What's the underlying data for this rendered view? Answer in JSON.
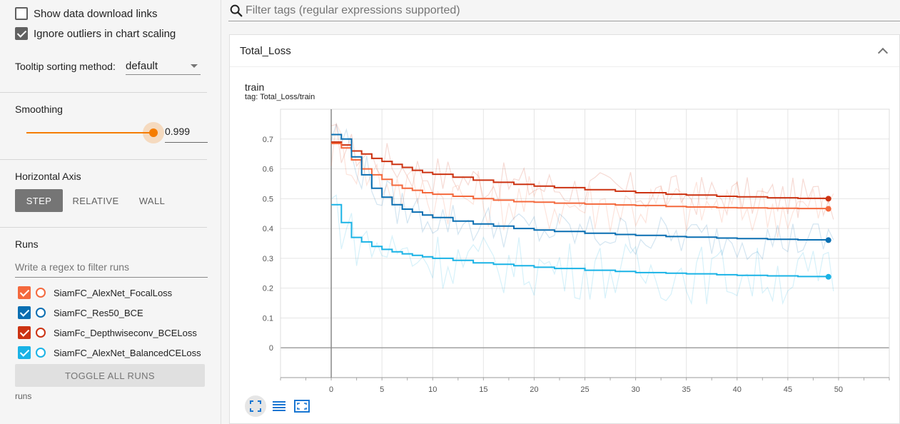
{
  "sidebar": {
    "show_download_links": {
      "label": "Show data download links",
      "checked": false
    },
    "ignore_outliers": {
      "label": "Ignore outliers in chart scaling",
      "checked": true
    },
    "tooltip_sorting": {
      "label": "Tooltip sorting method:",
      "value": "default"
    },
    "smoothing": {
      "label": "Smoothing",
      "value": "0.999",
      "accent": "#f57c00"
    },
    "horizontal_axis": {
      "label": "Horizontal Axis",
      "options": [
        "STEP",
        "RELATIVE",
        "WALL"
      ],
      "selected": "STEP"
    },
    "runs": {
      "label": "Runs",
      "filter_placeholder": "Write a regex to filter runs",
      "items": [
        {
          "name": "SiamFC_AlexNet_FocalLoss",
          "color": "#f4693d",
          "checked": true
        },
        {
          "name": "SiamFC_Res50_BCE",
          "color": "#0a6fb2",
          "checked": true
        },
        {
          "name": "SiamFc_Depthwiseconv_BCELoss",
          "color": "#cc3312",
          "checked": true
        },
        {
          "name": "SiamFC_AlexNet_BalancedCELoss",
          "color": "#1ab3e6",
          "checked": true
        }
      ],
      "toggle_label": "TOGGLE ALL RUNS",
      "footer": "runs"
    }
  },
  "main": {
    "filter_placeholder": "Filter tags (regular expressions supported)",
    "card": {
      "title": "Total_Loss",
      "chart_title": "train",
      "chart_tag": "tag: Total_Loss/train"
    },
    "toolbar": [
      "fit-domain-icon",
      "toggle-log-icon",
      "fit-to-data-icon"
    ]
  },
  "chart_data": {
    "type": "line",
    "xlim": [
      -5,
      55
    ],
    "ylim": [
      -0.1,
      0.8
    ],
    "xticks": [
      0,
      5,
      10,
      15,
      20,
      25,
      30,
      35,
      40,
      45,
      50
    ],
    "yticks": [
      0,
      0.1,
      0.2,
      0.3,
      0.4,
      0.5,
      0.6,
      0.7
    ],
    "grid": true,
    "series": [
      {
        "name": "SiamFc_Depthwiseconv_BCELoss",
        "color": "#cc3312",
        "smoothed": [
          [
            0,
            0.69
          ],
          [
            1,
            0.68
          ],
          [
            2,
            0.66
          ],
          [
            3,
            0.65
          ],
          [
            4,
            0.635
          ],
          [
            5,
            0.625
          ],
          [
            6,
            0.615
          ],
          [
            7,
            0.605
          ],
          [
            8,
            0.595
          ],
          [
            9,
            0.588
          ],
          [
            10,
            0.582
          ],
          [
            12,
            0.572
          ],
          [
            14,
            0.562
          ],
          [
            16,
            0.555
          ],
          [
            18,
            0.548
          ],
          [
            20,
            0.542
          ],
          [
            22,
            0.537
          ],
          [
            25,
            0.53
          ],
          [
            28,
            0.525
          ],
          [
            30,
            0.52
          ],
          [
            33,
            0.515
          ],
          [
            35,
            0.512
          ],
          [
            38,
            0.508
          ],
          [
            40,
            0.506
          ],
          [
            43,
            0.503
          ],
          [
            46,
            0.501
          ],
          [
            49,
            0.5
          ]
        ]
      },
      {
        "name": "SiamFC_AlexNet_FocalLoss",
        "color": "#f4693d",
        "smoothed": [
          [
            0,
            0.685
          ],
          [
            1,
            0.67
          ],
          [
            2,
            0.63
          ],
          [
            3,
            0.6
          ],
          [
            4,
            0.58
          ],
          [
            5,
            0.565
          ],
          [
            6,
            0.545
          ],
          [
            7,
            0.535
          ],
          [
            8,
            0.528
          ],
          [
            9,
            0.52
          ],
          [
            10,
            0.515
          ],
          [
            12,
            0.508
          ],
          [
            14,
            0.5
          ],
          [
            16,
            0.495
          ],
          [
            18,
            0.49
          ],
          [
            20,
            0.488
          ],
          [
            22,
            0.485
          ],
          [
            25,
            0.482
          ],
          [
            28,
            0.479
          ],
          [
            30,
            0.477
          ],
          [
            33,
            0.474
          ],
          [
            35,
            0.472
          ],
          [
            38,
            0.47
          ],
          [
            40,
            0.469
          ],
          [
            43,
            0.468
          ],
          [
            46,
            0.467
          ],
          [
            49,
            0.466
          ]
        ]
      },
      {
        "name": "SiamFC_Res50_BCE",
        "color": "#0a6fb2",
        "smoothed": [
          [
            0,
            0.715
          ],
          [
            1,
            0.7
          ],
          [
            2,
            0.64
          ],
          [
            3,
            0.58
          ],
          [
            4,
            0.535
          ],
          [
            5,
            0.505
          ],
          [
            6,
            0.48
          ],
          [
            7,
            0.465
          ],
          [
            8,
            0.455
          ],
          [
            9,
            0.445
          ],
          [
            10,
            0.437
          ],
          [
            12,
            0.425
          ],
          [
            14,
            0.415
          ],
          [
            16,
            0.408
          ],
          [
            18,
            0.4
          ],
          [
            20,
            0.395
          ],
          [
            22,
            0.39
          ],
          [
            25,
            0.384
          ],
          [
            28,
            0.38
          ],
          [
            30,
            0.377
          ],
          [
            33,
            0.373
          ],
          [
            35,
            0.371
          ],
          [
            38,
            0.368
          ],
          [
            40,
            0.366
          ],
          [
            43,
            0.364
          ],
          [
            46,
            0.362
          ],
          [
            49,
            0.361
          ]
        ]
      },
      {
        "name": "SiamFC_AlexNet_BalancedCELoss",
        "color": "#1ab3e6",
        "smoothed": [
          [
            0,
            0.48
          ],
          [
            1,
            0.42
          ],
          [
            2,
            0.37
          ],
          [
            3,
            0.355
          ],
          [
            4,
            0.34
          ],
          [
            5,
            0.33
          ],
          [
            6,
            0.322
          ],
          [
            7,
            0.315
          ],
          [
            8,
            0.31
          ],
          [
            9,
            0.305
          ],
          [
            10,
            0.3
          ],
          [
            12,
            0.293
          ],
          [
            14,
            0.285
          ],
          [
            16,
            0.28
          ],
          [
            18,
            0.275
          ],
          [
            20,
            0.27
          ],
          [
            22,
            0.266
          ],
          [
            25,
            0.26
          ],
          [
            28,
            0.256
          ],
          [
            30,
            0.252
          ],
          [
            33,
            0.25
          ],
          [
            35,
            0.248
          ],
          [
            38,
            0.245
          ],
          [
            40,
            0.243
          ],
          [
            43,
            0.241
          ],
          [
            46,
            0.239
          ],
          [
            49,
            0.238
          ]
        ]
      }
    ]
  }
}
